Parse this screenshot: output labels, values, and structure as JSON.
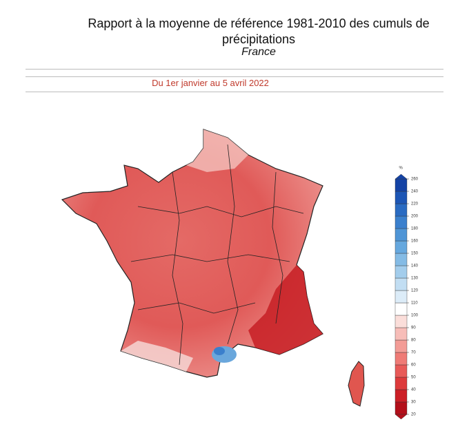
{
  "header": {
    "title_lines": [
      "Rapport à la moyenne  de référence 1981-2010 des cumuls de",
      "précipitations"
    ],
    "subtitle": "France"
  },
  "period": "Du 1er janvier au 5 avril 2022",
  "legend": {
    "unit": "%",
    "ticks": [
      20,
      30,
      40,
      50,
      60,
      70,
      80,
      90,
      100,
      110,
      120,
      130,
      140,
      150,
      160,
      180,
      200,
      220,
      240,
      260
    ],
    "colors": [
      "#b30f1a",
      "#cc1f26",
      "#dd3a3b",
      "#e85a58",
      "#ef7b76",
      "#f39c96",
      "#f7bdb8",
      "#fbdeda",
      "#ffffff",
      "#dcecf8",
      "#c2def3",
      "#a3cdec",
      "#84bbe5",
      "#66a8de",
      "#4f95d6",
      "#3b80cd",
      "#2a6bc2",
      "#1d56b5",
      "#1443a6"
    ]
  }
}
